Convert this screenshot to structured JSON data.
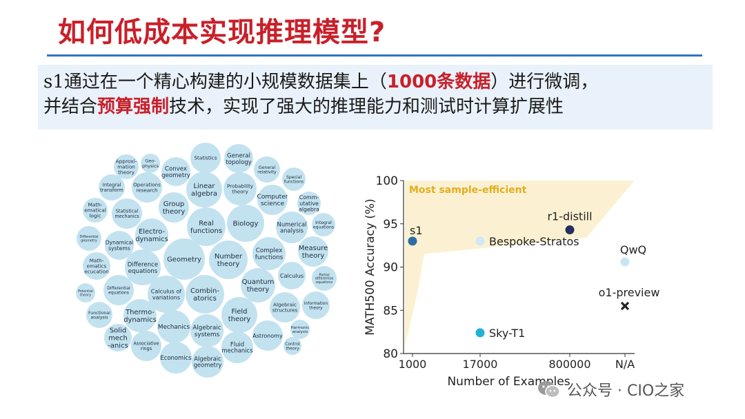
{
  "slide": {
    "title": "如何低成本实现推理模型?",
    "summary": {
      "line1": {
        "pre": "s1",
        "mid": "通过在一个精心构建的小规模数据集上（",
        "highlight": "1000条数据",
        "post": "）进行微调，"
      },
      "line2": {
        "pre": "并结合",
        "highlight": "预算强制",
        "post": "技术，实现了强大的推理能力和测试时计算扩展性"
      }
    },
    "colors": {
      "title": "#c8202a",
      "highlight": "#c8202a",
      "rule": "#2e74c8",
      "summary_bg": "#e9f1fa",
      "bubble": "#c3e2f0"
    }
  },
  "bubbles": [
    {
      "text": "Approxi-|mation|theory"
    },
    {
      "text": "Geo-|physics"
    },
    {
      "text": "Convex|geometry"
    },
    {
      "text": "Statistics"
    },
    {
      "text": "General|topology"
    },
    {
      "text": "General|relativity"
    },
    {
      "text": "Special|functions"
    },
    {
      "text": "Integral|transform"
    },
    {
      "text": "Operations|research"
    },
    {
      "text": "Linear|algebra"
    },
    {
      "text": "Probability|theory"
    },
    {
      "text": "Computer|science"
    },
    {
      "text": "Comm-|utative|algebra"
    },
    {
      "text": "Math-|ematical|logic"
    },
    {
      "text": "Statistical|mechanics"
    },
    {
      "text": "Group|theory"
    },
    {
      "text": "Integral|equations"
    },
    {
      "text": "Real|functions"
    },
    {
      "text": "Biology"
    },
    {
      "text": "Numerical|analysis"
    },
    {
      "text": "Differential|geometry"
    },
    {
      "text": "Electro-|dynamics"
    },
    {
      "text": "Dynamical|systems"
    },
    {
      "text": "Measure|theory"
    },
    {
      "text": "Complex|functions"
    },
    {
      "text": "Geometry"
    },
    {
      "text": "Number|theory"
    },
    {
      "text": "Math-|ematics|ecucation"
    },
    {
      "text": "Difference|equations"
    },
    {
      "text": "Partial|differential|equations"
    },
    {
      "text": "Calculus"
    },
    {
      "text": "Quantum|theory"
    },
    {
      "text": "Potential|theory"
    },
    {
      "text": "Differential|equations"
    },
    {
      "text": "Calculus of|variations"
    },
    {
      "text": "Combin-|atorics"
    },
    {
      "text": "Information|theory"
    },
    {
      "text": "Algebraic|structures"
    },
    {
      "text": "Functional|analysis"
    },
    {
      "text": "Thermo-|dynamics"
    },
    {
      "text": "Field|theory"
    },
    {
      "text": "Harmonic|analysis"
    },
    {
      "text": "Mechanics"
    },
    {
      "text": "Algebraic|systems"
    },
    {
      "text": "Astronomy"
    },
    {
      "text": "Solid|mech|-anics"
    },
    {
      "text": "Associative|rings"
    },
    {
      "text": "Control|theory"
    },
    {
      "text": "Fluid|mechanics"
    },
    {
      "text": "Economics"
    },
    {
      "text": "Algebraic|geometry"
    }
  ],
  "chart_data": {
    "type": "scatter",
    "ylabel": "MATH500 Accuracy (%)",
    "xlabel": "Number of Examples",
    "x_categories": [
      "1000",
      "17000",
      "800000",
      "N/A"
    ],
    "ylim": [
      80,
      100
    ],
    "yticks": [
      80,
      85,
      90,
      95,
      100
    ],
    "region_label": "Most sample-efficient",
    "region_color": "#fbf1d2",
    "region_label_color": "#e3ad1d",
    "points": [
      {
        "name": "s1",
        "x": "1000",
        "y": 93.0,
        "color": "#2e6da4",
        "marker": "circle"
      },
      {
        "name": "Bespoke-Stratos",
        "x": "17000",
        "y": 93.0,
        "color": "#cfe9f6",
        "marker": "circle"
      },
      {
        "name": "Sky-T1",
        "x": "17000",
        "y": 82.4,
        "color": "#1fb2d4",
        "marker": "circle"
      },
      {
        "name": "r1-distill",
        "x": "800000",
        "y": 94.3,
        "color": "#232f5e",
        "marker": "circle"
      },
      {
        "name": "QwQ",
        "x": "N/A",
        "y": 90.6,
        "color": "#c7e6f5",
        "marker": "circle"
      },
      {
        "name": "o1-preview",
        "x": "N/A",
        "y": 85.5,
        "color": "#222222",
        "marker": "x"
      }
    ]
  },
  "watermark": {
    "text": "公众号 · CIO之家",
    "icon": "wechat-icon"
  }
}
